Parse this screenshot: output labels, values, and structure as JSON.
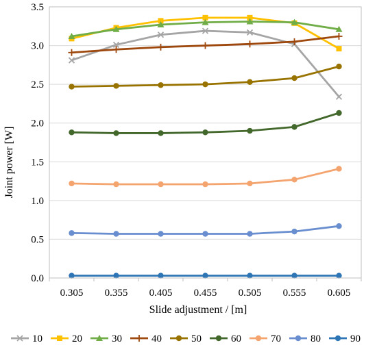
{
  "chart_data": {
    "type": "line",
    "xlabel": "Slide adjustment / [m]",
    "ylabel": "Joint power [W]",
    "categories": [
      "0.305",
      "0.355",
      "0.405",
      "0.455",
      "0.505",
      "0.555",
      "0.605"
    ],
    "ylim": [
      0,
      3.5
    ],
    "yticks": [
      "0.0",
      "0.5",
      "1.0",
      "1.5",
      "2.0",
      "2.5",
      "3.0",
      "3.5"
    ],
    "grid": true,
    "legend_position": "bottom",
    "series": [
      {
        "name": "10",
        "color": "#a5a5a5",
        "marker": "x",
        "values": [
          2.81,
          3.01,
          3.14,
          3.19,
          3.17,
          3.02,
          2.34
        ]
      },
      {
        "name": "20",
        "color": "#ffc000",
        "marker": "square",
        "values": [
          3.09,
          3.23,
          3.32,
          3.36,
          3.36,
          3.29,
          2.96
        ]
      },
      {
        "name": "30",
        "color": "#70ad47",
        "marker": "triangle",
        "values": [
          3.12,
          3.21,
          3.27,
          3.3,
          3.31,
          3.3,
          3.21
        ]
      },
      {
        "name": "40",
        "color": "#9e480e",
        "marker": "plus",
        "values": [
          2.91,
          2.95,
          2.98,
          3.0,
          3.02,
          3.05,
          3.12
        ]
      },
      {
        "name": "50",
        "color": "#997300",
        "marker": "circle",
        "values": [
          2.47,
          2.48,
          2.49,
          2.5,
          2.53,
          2.58,
          2.73
        ]
      },
      {
        "name": "60",
        "color": "#43682b",
        "marker": "circle",
        "values": [
          1.88,
          1.87,
          1.87,
          1.88,
          1.9,
          1.95,
          2.13
        ]
      },
      {
        "name": "70",
        "color": "#f4a46f",
        "marker": "circle",
        "values": [
          1.22,
          1.21,
          1.21,
          1.21,
          1.22,
          1.27,
          1.41
        ]
      },
      {
        "name": "80",
        "color": "#698ed0",
        "marker": "circle",
        "values": [
          0.58,
          0.57,
          0.57,
          0.57,
          0.57,
          0.6,
          0.67
        ]
      },
      {
        "name": "90",
        "color": "#2e75b6",
        "marker": "circle",
        "values": [
          0.03,
          0.03,
          0.03,
          0.03,
          0.03,
          0.03,
          0.03
        ]
      }
    ]
  }
}
